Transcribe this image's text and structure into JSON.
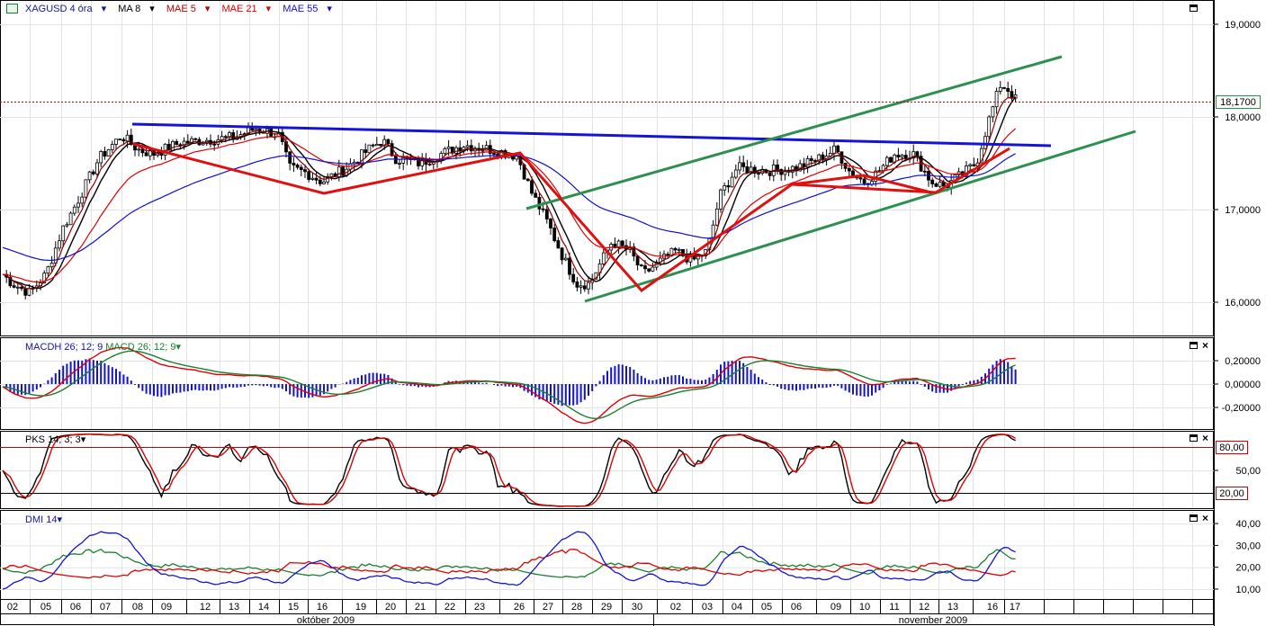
{
  "header": {
    "symbol": "XAGUSD 4 óra",
    "indicators": [
      {
        "label": "MA 8",
        "color": "#000000"
      },
      {
        "label": "MAE 5",
        "color": "#8b0000"
      },
      {
        "label": "MAE 21",
        "color": "#e00000"
      },
      {
        "label": "MAE 55",
        "color": "#1010d0"
      }
    ]
  },
  "panels": {
    "macd": {
      "label_h": "MACDH 26; 12; 9",
      "label_l": "MACD 26; 12; 9"
    },
    "pks": {
      "label": "PKS 14; 3; 3"
    },
    "dmi": {
      "label": "DMI 14"
    }
  },
  "price_marker": {
    "value": "18,1700",
    "color": "#e00000"
  },
  "pks_levels": [
    {
      "label": "80,00",
      "value": 80
    },
    {
      "label": "20,00",
      "value": 20
    }
  ],
  "x_axis": {
    "days": [
      "02",
      "05",
      "06",
      "07",
      "08",
      "09",
      "12",
      "13",
      "14",
      "15",
      "16",
      "19",
      "20",
      "21",
      "22",
      "23",
      "26",
      "27",
      "28",
      "29",
      "30",
      "02",
      "03",
      "04",
      "05",
      "06",
      "09",
      "10",
      "11",
      "12",
      "13",
      "16",
      "17"
    ],
    "months": [
      "október 2009",
      "november 2009"
    ]
  },
  "chart_data": [
    {
      "type": "candlestick",
      "title": "XAGUSD 4 óra",
      "y_ticks": [
        "19,0000",
        "18,0000",
        "17,0000",
        "16,0000"
      ],
      "ylim": [
        15.7,
        19.2
      ],
      "key_closes": {
        "02": 16.25,
        "05": 16.3,
        "06": 16.9,
        "07": 17.4,
        "08": 17.75,
        "09": 17.6,
        "12": 17.7,
        "13": 17.75,
        "14": 17.85,
        "15": 17.5,
        "16": 17.4,
        "19": 17.45,
        "20": 17.75,
        "21": 17.5,
        "22": 17.6,
        "23": 17.65,
        "26": 17.6,
        "27": 16.85,
        "28": 16.35,
        "29": 16.55,
        "30": 16.25,
        "02b": 16.5,
        "03": 16.45,
        "04": 17.4,
        "05b": 17.45,
        "06b": 17.45,
        "09b": 17.6,
        "10": 17.35,
        "11": 17.5,
        "12b": 17.6,
        "13b": 17.3,
        "16b": 18.3,
        "17": 18.17
      },
      "last_price": 18.17
    },
    {
      "type": "line",
      "title": "MACDH 26; 12; 9 / MACD 26; 12; 9",
      "y_ticks": [
        "0,20000",
        "0,00000",
        "-0,20000"
      ],
      "ylim": [
        -0.36,
        0.36
      ]
    },
    {
      "type": "line",
      "title": "PKS 14; 3; 3",
      "y_ticks": [
        "80,00",
        "50,00",
        "20,00"
      ],
      "ylim": [
        0,
        100
      ]
    },
    {
      "type": "line",
      "title": "DMI 14",
      "y_ticks": [
        "40,00",
        "30,00",
        "20,00",
        "10,00"
      ],
      "ylim": [
        5,
        45
      ]
    }
  ]
}
